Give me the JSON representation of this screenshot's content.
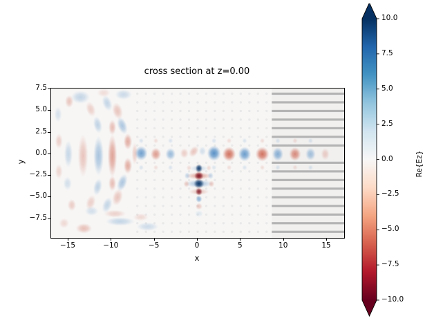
{
  "figure": {
    "title": "cross section at z=0.00"
  },
  "axes": {
    "xlabel": "x",
    "ylabel": "y",
    "xlim": [
      -17,
      17
    ],
    "ylim": [
      -9.7,
      7.6
    ],
    "x_ticks": [
      {
        "value": -15,
        "label": "−15"
      },
      {
        "value": -10,
        "label": "−10"
      },
      {
        "value": -5,
        "label": "−5"
      },
      {
        "value": 0,
        "label": "0"
      },
      {
        "value": 5,
        "label": "5"
      },
      {
        "value": 10,
        "label": "10"
      },
      {
        "value": 15,
        "label": "15"
      }
    ],
    "y_ticks": [
      {
        "value": 7.5,
        "label": "7.5"
      },
      {
        "value": 5.0,
        "label": "5.0"
      },
      {
        "value": 2.5,
        "label": "2.5"
      },
      {
        "value": 0.0,
        "label": "0.0"
      },
      {
        "value": -2.5,
        "label": "−2.5"
      },
      {
        "value": -5.0,
        "label": "−5.0"
      },
      {
        "value": -7.5,
        "label": "−7.5"
      }
    ]
  },
  "colorbar": {
    "label": "Re{Ez}",
    "vmin": -10,
    "vmax": 10,
    "extend": "both",
    "colormap": "RdBu",
    "gradient_top_to_bottom": [
      "#053061",
      "#2166ac",
      "#4393c3",
      "#92c5de",
      "#d1e5f0",
      "#f7f7f7",
      "#fddbc7",
      "#f4a582",
      "#d6604d",
      "#b2182b",
      "#67001f"
    ],
    "ticks": [
      {
        "value": 10.0,
        "label": "10.0"
      },
      {
        "value": 7.5,
        "label": "7.5"
      },
      {
        "value": 5.0,
        "label": "5.0"
      },
      {
        "value": 2.5,
        "label": "2.5"
      },
      {
        "value": 0.0,
        "label": "0.0"
      },
      {
        "value": -2.5,
        "label": "−2.5"
      },
      {
        "value": -5.0,
        "label": "−5.0"
      },
      {
        "value": -7.5,
        "label": "−7.5"
      },
      {
        "value": -10.0,
        "label": "−10.0"
      }
    ]
  },
  "chart_data": {
    "type": "heatmap",
    "title": "cross section at z=0.00",
    "xlabel": "x",
    "ylabel": "y",
    "xlim": [
      -17,
      17
    ],
    "ylim": [
      -9.7,
      7.6
    ],
    "value_label": "Re{Ez}",
    "value_range": [
      -10,
      10
    ],
    "colormap": "RdBu",
    "description": "Real part of Ez field in a photonic-crystal waveguide cross-section: dot lattice holes at integer coordinates, a waveguide channel along y=0, a vertical dipole-like source column near x=0 below the guide, radiated interference fringes on the left, and a horizontal-bar grating region on the right.",
    "palette": {
      "background": "#f7f6f5",
      "navy": "#0a3668",
      "blue": "#3d7fbf",
      "blue_light": "#9cc2de",
      "red": "#c8523c",
      "red_light": "#e59a82",
      "dark_red": "#7c1120",
      "lattice_dot": "#e9e9e9",
      "grating_line": "#b4b4b4",
      "grating_tint": "rgba(110,110,110,0.045)"
    },
    "lattice_dots": {
      "x_min": -7,
      "x_max": 8,
      "y_min": -9,
      "y_max": 7,
      "exclude_rows": [
        0
      ],
      "radius_px": 1.7
    },
    "grating": {
      "x_start": 8.6,
      "x_end": 17,
      "rows_y": [
        7,
        6,
        5,
        4,
        3,
        2,
        1,
        -1,
        -2,
        -3,
        -4,
        -5,
        -6,
        -7,
        -8,
        -9
      ],
      "thickness_px": 3.2
    },
    "blob_format": [
      "x",
      "y",
      "rx_units",
      "ry_units",
      "color_key",
      "alpha",
      "rotation_deg"
    ],
    "left_field_blobs": [
      [
        -8.1,
        1.45,
        0.5,
        0.95,
        "red",
        0.45,
        0
      ],
      [
        -8.1,
        -1.35,
        0.5,
        0.95,
        "red",
        0.45,
        0
      ],
      [
        -8.75,
        3.3,
        0.55,
        1.05,
        "blue",
        0.4,
        -20
      ],
      [
        -8.75,
        -3.3,
        0.55,
        1.05,
        "blue",
        0.4,
        20
      ],
      [
        -9.3,
        5.0,
        0.6,
        1.0,
        "red",
        0.3,
        -15
      ],
      [
        -9.3,
        -5.0,
        0.6,
        1.0,
        "red",
        0.3,
        15
      ],
      [
        -10.5,
        5.9,
        0.55,
        0.95,
        "blue",
        0.28,
        -20
      ],
      [
        -10.5,
        -5.9,
        0.55,
        0.95,
        "blue",
        0.28,
        20
      ],
      [
        -9.9,
        -0.2,
        0.55,
        2.5,
        "red",
        0.5,
        0
      ],
      [
        -9.9,
        3.1,
        0.45,
        0.9,
        "red",
        0.35,
        0
      ],
      [
        -9.9,
        -3.4,
        0.45,
        0.9,
        "red",
        0.35,
        0
      ],
      [
        -11.5,
        -0.2,
        0.6,
        2.3,
        "blue",
        0.42,
        0
      ],
      [
        -11.6,
        3.4,
        0.5,
        1.0,
        "blue",
        0.3,
        -12
      ],
      [
        -11.6,
        -3.8,
        0.5,
        1.0,
        "blue",
        0.3,
        12
      ],
      [
        -13.3,
        -0.2,
        0.6,
        2.5,
        "red",
        0.3,
        0
      ],
      [
        -12.4,
        5.2,
        0.55,
        0.9,
        "red",
        0.24,
        -18
      ],
      [
        -12.4,
        -5.6,
        0.55,
        0.9,
        "red",
        0.24,
        18
      ],
      [
        -13.6,
        6.6,
        1.1,
        0.75,
        "blue",
        0.28,
        0
      ],
      [
        -8.6,
        6.9,
        1.0,
        0.6,
        "blue",
        0.24,
        0
      ],
      [
        -10.9,
        7.1,
        0.8,
        0.5,
        "red",
        0.16,
        0
      ],
      [
        -15.0,
        0.0,
        0.5,
        1.6,
        "blue",
        0.26,
        0
      ],
      [
        -14.9,
        6.1,
        0.5,
        0.75,
        "red",
        0.3,
        0
      ],
      [
        -16.2,
        4.6,
        0.45,
        0.9,
        "blue",
        0.18,
        0
      ],
      [
        -16.1,
        1.5,
        0.45,
        0.9,
        "red",
        0.24,
        0
      ],
      [
        -16.1,
        -2.0,
        0.45,
        0.9,
        "red",
        0.2,
        0
      ],
      [
        -15.1,
        -3.4,
        0.5,
        0.8,
        "blue",
        0.2,
        0
      ],
      [
        -14.6,
        -5.9,
        0.5,
        0.7,
        "red",
        0.26,
        0
      ],
      [
        -13.2,
        -8.6,
        0.95,
        0.6,
        "red",
        0.33,
        0
      ],
      [
        -9.0,
        -7.8,
        1.7,
        0.5,
        "blue",
        0.28,
        0
      ],
      [
        -9.6,
        -6.9,
        1.3,
        0.45,
        "red",
        0.23,
        0
      ],
      [
        -12.3,
        -6.6,
        0.8,
        0.55,
        "blue",
        0.2,
        0
      ],
      [
        -5.8,
        -8.4,
        1.3,
        0.5,
        "blue",
        0.23,
        0
      ],
      [
        -6.6,
        -7.3,
        0.9,
        0.45,
        "red",
        0.18,
        0
      ],
      [
        -15.5,
        -8.0,
        0.6,
        0.6,
        "red",
        0.18,
        0
      ],
      [
        -7.3,
        0.05,
        0.35,
        1.3,
        "red",
        0.25,
        0
      ]
    ],
    "waveguide_blobs": [
      [
        -6.55,
        0.1,
        0.75,
        0.85,
        "blue",
        0.72,
        0
      ],
      [
        -4.85,
        0.0,
        0.62,
        0.75,
        "red",
        0.55,
        0
      ],
      [
        -3.15,
        0.0,
        0.6,
        0.72,
        "blue",
        0.5,
        0
      ],
      [
        -1.55,
        0.1,
        0.5,
        0.6,
        "red",
        0.25,
        0
      ],
      [
        -0.45,
        0.3,
        0.5,
        0.72,
        "red",
        0.3,
        35
      ],
      [
        0.55,
        0.35,
        0.42,
        0.55,
        "blue",
        0.2,
        0
      ],
      [
        1.9,
        0.1,
        0.8,
        0.9,
        "blue",
        0.85,
        0
      ],
      [
        3.65,
        0.0,
        0.78,
        0.85,
        "red",
        0.8,
        0
      ],
      [
        5.45,
        0.0,
        0.75,
        0.85,
        "blue",
        0.75,
        0
      ],
      [
        7.5,
        0.0,
        0.8,
        0.85,
        "red",
        0.8,
        0
      ],
      [
        9.3,
        0.0,
        0.65,
        0.8,
        "blue",
        0.6,
        0
      ],
      [
        11.3,
        0.0,
        0.7,
        0.8,
        "red",
        0.65,
        0
      ],
      [
        13.1,
        0.0,
        0.6,
        0.75,
        "blue",
        0.45,
        0
      ],
      [
        14.8,
        0.0,
        0.5,
        0.7,
        "red",
        0.25,
        0
      ]
    ],
    "source_stack_blobs": [
      [
        0.15,
        -3.0,
        0.5,
        2.2,
        "red_light",
        0.22,
        0
      ],
      [
        0.15,
        -2.52,
        1.5,
        0.42,
        "red",
        0.45,
        0
      ],
      [
        0.15,
        -3.42,
        1.6,
        0.48,
        "blue",
        0.4,
        0
      ],
      [
        0.15,
        -1.65,
        1.1,
        0.38,
        "blue",
        0.22,
        0
      ],
      [
        0.15,
        -4.35,
        1.2,
        0.38,
        "red",
        0.28,
        0
      ],
      [
        0.15,
        -1.65,
        0.42,
        0.5,
        "navy",
        0.92,
        0
      ],
      [
        0.15,
        -2.52,
        0.55,
        0.48,
        "dark_red",
        0.95,
        0
      ],
      [
        0.15,
        -3.42,
        0.62,
        0.55,
        "navy",
        0.97,
        0
      ],
      [
        0.15,
        -4.35,
        0.42,
        0.45,
        "dark_red",
        0.85,
        0
      ],
      [
        0.15,
        -5.2,
        0.38,
        0.42,
        "blue",
        0.55,
        0
      ],
      [
        0.15,
        -6.05,
        0.42,
        0.4,
        "red",
        0.28,
        0
      ],
      [
        0.15,
        -6.9,
        0.5,
        0.4,
        "blue_light",
        0.28,
        0
      ],
      [
        1.5,
        -2.5,
        0.35,
        0.4,
        "blue",
        0.28,
        0
      ],
      [
        -1.2,
        -2.5,
        0.35,
        0.4,
        "blue",
        0.28,
        0
      ],
      [
        1.6,
        -3.45,
        0.35,
        0.4,
        "red",
        0.28,
        0
      ],
      [
        -1.3,
        -3.45,
        0.35,
        0.4,
        "red",
        0.28,
        0
      ],
      [
        1.3,
        -1.6,
        0.3,
        0.35,
        "red",
        0.18,
        0
      ],
      [
        -1.0,
        -1.6,
        0.3,
        0.35,
        "red",
        0.18,
        0
      ]
    ]
  }
}
